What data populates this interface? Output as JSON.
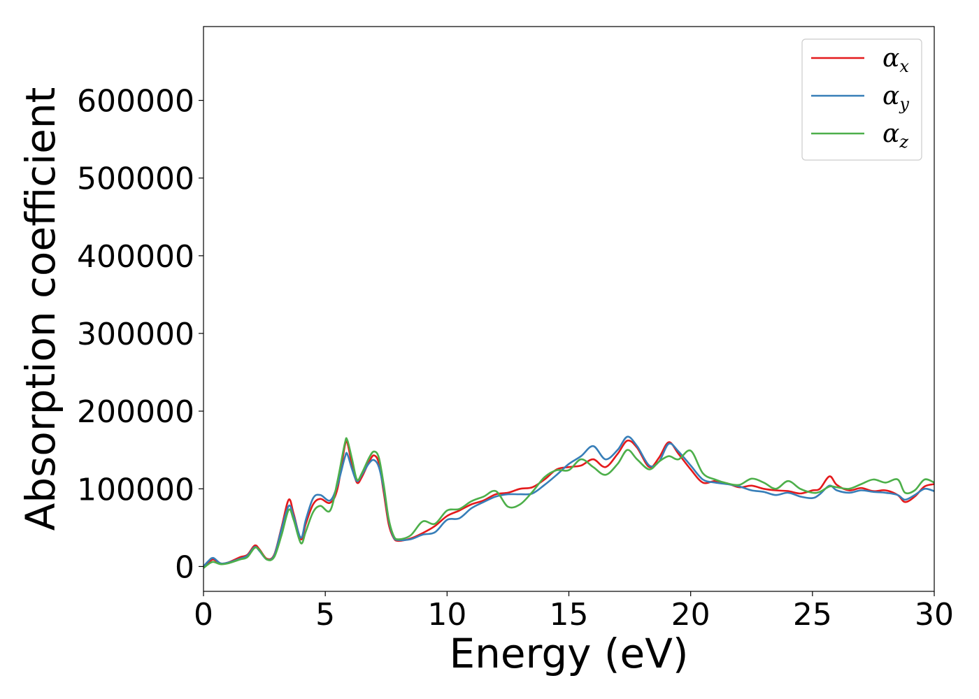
{
  "chart_data": {
    "type": "line",
    "title": "",
    "xlabel": "Energy (eV)",
    "ylabel": "Absorption coefficient",
    "xlim": [
      0,
      30
    ],
    "ylim": [
      -32000,
      695000
    ],
    "xticks": [
      0,
      5,
      10,
      15,
      20,
      25,
      30
    ],
    "yticks": [
      0,
      100000,
      200000,
      300000,
      400000,
      500000,
      600000
    ],
    "xtick_labels": [
      "0",
      "5",
      "10",
      "15",
      "20",
      "25",
      "30"
    ],
    "ytick_labels": [
      "0",
      "100000",
      "200000",
      "300000",
      "400000",
      "500000",
      "600000"
    ],
    "grid": false,
    "legend_position": "top-right",
    "series": [
      {
        "name": "αx",
        "symbol": "α",
        "subscript": "x",
        "color": "#e41a1c",
        "x": [
          0,
          0.2,
          0.4,
          0.7,
          1.0,
          1.5,
          1.8,
          2.1,
          2.3,
          2.6,
          2.9,
          3.2,
          3.5,
          3.7,
          4.0,
          4.2,
          4.5,
          4.8,
          5.2,
          5.5,
          5.8,
          5.9,
          6.1,
          6.3,
          6.5,
          6.8,
          7.0,
          7.2,
          7.4,
          7.6,
          7.8,
          8.0,
          8.5,
          9.0,
          9.5,
          10.0,
          10.5,
          11.0,
          11.5,
          12.0,
          12.5,
          13.0,
          13.5,
          14.0,
          14.5,
          15.0,
          15.5,
          16.0,
          16.5,
          17.0,
          17.4,
          17.8,
          18.3,
          18.7,
          19.1,
          19.5,
          20.0,
          20.5,
          21.0,
          21.5,
          22.0,
          22.5,
          23.0,
          23.5,
          24.0,
          24.5,
          25.0,
          25.3,
          25.7,
          26.0,
          26.5,
          27.0,
          27.5,
          28.0,
          28.5,
          28.8,
          29.2,
          29.6,
          30.0
        ],
        "y": [
          0,
          5000,
          9000,
          4000,
          5000,
          12000,
          15000,
          27000,
          22000,
          10000,
          15000,
          50000,
          86000,
          68000,
          35000,
          55000,
          80000,
          87000,
          82000,
          100000,
          155000,
          160000,
          130000,
          108000,
          115000,
          135000,
          143000,
          133000,
          95000,
          55000,
          37000,
          33000,
          36000,
          43000,
          52000,
          65000,
          72000,
          80000,
          85000,
          93000,
          95000,
          100000,
          102000,
          112000,
          125000,
          128000,
          130000,
          138000,
          128000,
          145000,
          162000,
          153000,
          128000,
          140000,
          160000,
          145000,
          125000,
          108000,
          110000,
          107000,
          102000,
          104000,
          100000,
          98000,
          97000,
          94000,
          98000,
          100000,
          116000,
          105000,
          98000,
          101000,
          97000,
          98000,
          92000,
          83000,
          90000,
          103000,
          106000
        ]
      },
      {
        "name": "αy",
        "symbol": "α",
        "subscript": "y",
        "color": "#377eb8",
        "x": [
          0,
          0.2,
          0.4,
          0.7,
          1.0,
          1.5,
          1.8,
          2.1,
          2.3,
          2.6,
          2.9,
          3.2,
          3.5,
          3.7,
          4.0,
          4.2,
          4.5,
          4.8,
          5.2,
          5.5,
          5.8,
          5.9,
          6.1,
          6.3,
          6.5,
          6.8,
          7.0,
          7.2,
          7.4,
          7.6,
          7.8,
          8.0,
          8.5,
          9.0,
          9.5,
          10.0,
          10.5,
          11.0,
          11.5,
          12.0,
          12.5,
          13.0,
          13.5,
          14.0,
          14.5,
          15.0,
          15.5,
          16.0,
          16.5,
          17.0,
          17.4,
          17.8,
          18.3,
          18.7,
          19.1,
          19.5,
          20.0,
          20.5,
          21.0,
          21.5,
          22.0,
          22.5,
          23.0,
          23.5,
          24.0,
          24.5,
          25.0,
          25.3,
          25.7,
          26.0,
          26.5,
          27.0,
          27.5,
          28.0,
          28.5,
          28.8,
          29.2,
          29.6,
          30.0
        ],
        "y": [
          0,
          7000,
          11000,
          4000,
          5000,
          10000,
          14000,
          25000,
          20000,
          9000,
          14000,
          48000,
          78000,
          65000,
          37000,
          60000,
          88000,
          92000,
          85000,
          105000,
          140000,
          145000,
          125000,
          110000,
          118000,
          133000,
          137000,
          128000,
          100000,
          60000,
          38000,
          34000,
          35000,
          41000,
          44000,
          60000,
          62000,
          75000,
          83000,
          90000,
          93000,
          93000,
          94000,
          105000,
          118000,
          132000,
          142000,
          155000,
          138000,
          150000,
          167000,
          155000,
          130000,
          135000,
          158000,
          148000,
          130000,
          112000,
          108000,
          106000,
          103000,
          98000,
          96000,
          92000,
          95000,
          90000,
          88000,
          93000,
          104000,
          98000,
          95000,
          98000,
          96000,
          95000,
          92000,
          86000,
          92000,
          100000,
          97000
        ]
      },
      {
        "name": "αz",
        "symbol": "α",
        "subscript": "z",
        "color": "#4daf4a",
        "x": [
          0,
          0.2,
          0.4,
          0.7,
          1.0,
          1.5,
          1.8,
          2.1,
          2.3,
          2.6,
          2.9,
          3.2,
          3.5,
          3.7,
          4.0,
          4.2,
          4.5,
          4.8,
          5.2,
          5.5,
          5.8,
          5.9,
          6.1,
          6.3,
          6.5,
          6.8,
          7.0,
          7.2,
          7.4,
          7.6,
          7.8,
          8.0,
          8.5,
          9.0,
          9.5,
          10.0,
          10.5,
          11.0,
          11.5,
          12.0,
          12.5,
          13.0,
          13.5,
          14.0,
          14.5,
          15.0,
          15.5,
          16.0,
          16.5,
          17.0,
          17.4,
          17.8,
          18.3,
          18.7,
          19.1,
          19.5,
          20.0,
          20.5,
          21.0,
          21.5,
          22.0,
          22.5,
          23.0,
          23.5,
          24.0,
          24.5,
          25.0,
          25.3,
          25.7,
          26.0,
          26.5,
          27.0,
          27.5,
          28.0,
          28.5,
          28.8,
          29.2,
          29.6,
          30.0
        ],
        "y": [
          -2000,
          3000,
          6000,
          3000,
          4000,
          9000,
          12000,
          24000,
          21000,
          9000,
          12000,
          40000,
          73000,
          60000,
          30000,
          45000,
          70000,
          78000,
          72000,
          110000,
          158000,
          163000,
          138000,
          112000,
          120000,
          140000,
          148000,
          140000,
          105000,
          62000,
          40000,
          35000,
          40000,
          58000,
          55000,
          72000,
          74000,
          84000,
          90000,
          97000,
          77000,
          80000,
          96000,
          115000,
          124000,
          124000,
          138000,
          128000,
          118000,
          132000,
          150000,
          138000,
          125000,
          135000,
          142000,
          138000,
          149000,
          120000,
          112000,
          107000,
          105000,
          113000,
          108000,
          100000,
          110000,
          100000,
          95000,
          96000,
          103000,
          102000,
          100000,
          106000,
          112000,
          108000,
          112000,
          95000,
          98000,
          112000,
          108000
        ]
      }
    ]
  }
}
